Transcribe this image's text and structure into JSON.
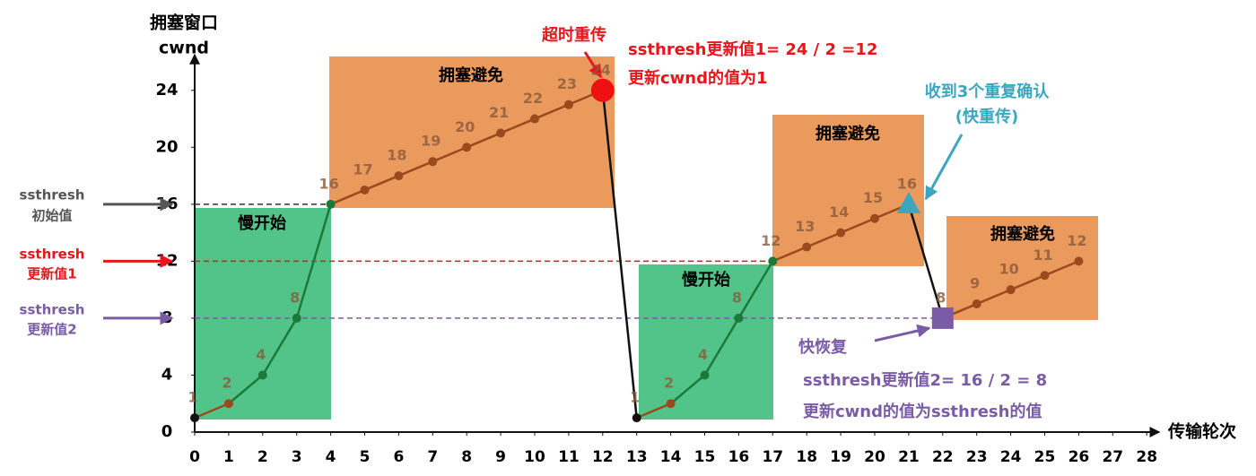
{
  "chart_data": {
    "type": "line",
    "y_label": [
      "拥塞窗口",
      "cwnd"
    ],
    "x_label": "传输轮次",
    "x": [
      0,
      1,
      2,
      3,
      4,
      5,
      6,
      7,
      8,
      9,
      10,
      11,
      12,
      13,
      14,
      15,
      16,
      17,
      18,
      19,
      20,
      21,
      22,
      23,
      24,
      25,
      26
    ],
    "series": [
      {
        "values": [
          1,
          2,
          4,
          8,
          16,
          17,
          18,
          19,
          20,
          21,
          22,
          23,
          24,
          1,
          2,
          4,
          8,
          12,
          13,
          14,
          15,
          16,
          8,
          9,
          10,
          11,
          12
        ]
      }
    ],
    "colors": {
      "fast_growth": "#1b7a3a",
      "linear_growth": "#9a4a1c",
      "drop": "#111111"
    },
    "xlim": [
      0,
      28
    ],
    "xticks": [
      0,
      1,
      2,
      3,
      4,
      5,
      6,
      7,
      8,
      9,
      10,
      11,
      12,
      13,
      14,
      15,
      16,
      17,
      18,
      19,
      20,
      21,
      22,
      23,
      24,
      25,
      26,
      27,
      28
    ],
    "ylim": [
      0,
      26
    ],
    "yticks": [
      0,
      4,
      8,
      12,
      16,
      20,
      24
    ],
    "thresholds": [
      {
        "value": 16,
        "to": 4,
        "color": "#333333",
        "label": [
          "ssthresh",
          "初始值"
        ]
      },
      {
        "value": 12,
        "to": 17,
        "color": "#e8151b",
        "label": [
          "ssthresh",
          "更新值1"
        ]
      },
      {
        "value": 8,
        "to": 22,
        "color": "#7a5ca6",
        "label": [
          "ssthresh",
          "更新值2"
        ]
      }
    ],
    "annotations": {
      "regions": [
        "慢开始",
        "拥塞避免",
        "慢开始",
        "拥塞避免",
        "拥塞避免"
      ],
      "timeout": "超时重传",
      "timeout_note": [
        "ssthresh更新值1= 24 / 2 =12",
        "更新cwnd的值为1"
      ],
      "fast_retransmit": [
        "收到3个重复确认",
        "(快重传)"
      ],
      "fast_recovery": "快恢复",
      "fast_recovery_note": [
        "ssthresh更新值2= 16 / 2 = 8",
        "更新cwnd的值为ssthresh的值"
      ]
    }
  }
}
